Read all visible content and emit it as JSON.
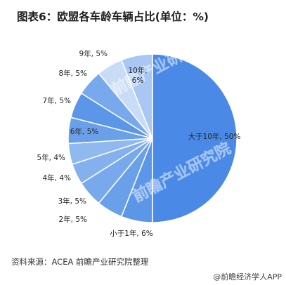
{
  "header": {
    "title": "图表6：欧盟各车龄车辆占比(单位：%)"
  },
  "footer": {
    "source": "资料来源：ACEA 前瞻产业研究院整理",
    "brand": "@前瞻经济学人APP"
  },
  "watermark": {
    "text": "前瞻产业研究院"
  },
  "chart_data": {
    "type": "pie",
    "title": "图表6：欧盟各车龄车辆占比(单位：%)",
    "unit": "%",
    "start_angle_deg": 0,
    "direction": "clockwise",
    "slices": [
      {
        "label": "大于10年, 50%",
        "category": "大于10年",
        "value": 50,
        "color": "#4a8ae6"
      },
      {
        "label": "小于1年, 6%",
        "category": "小于1年",
        "value": 6,
        "color": "#5b96e8"
      },
      {
        "label": "2年, 5%",
        "category": "2年",
        "value": 5,
        "color": "#6aa0ea"
      },
      {
        "label": "3年, 5%",
        "category": "3年",
        "value": 5,
        "color": "#78a9ec"
      },
      {
        "label": "4年, 4%",
        "category": "4年",
        "value": 4,
        "color": "#84b1ee"
      },
      {
        "label": "5年, 4%",
        "category": "5年",
        "value": 4,
        "color": "#90b9f0"
      },
      {
        "label": "6年, 5%",
        "category": "6年",
        "value": 5,
        "color": "#6aa0ea"
      },
      {
        "label": "7年, 5%",
        "category": "7年",
        "value": 5,
        "color": "#5b96e8"
      },
      {
        "label": "8年, 5%",
        "category": "8年",
        "value": 5,
        "color": "#78a9ec"
      },
      {
        "label": "9年, 5%",
        "category": "9年",
        "value": 5,
        "color": "#c9dcf7"
      },
      {
        "label": "10年, 6%",
        "category": "10年",
        "value": 6,
        "color": "#a8c8f3"
      }
    ]
  }
}
